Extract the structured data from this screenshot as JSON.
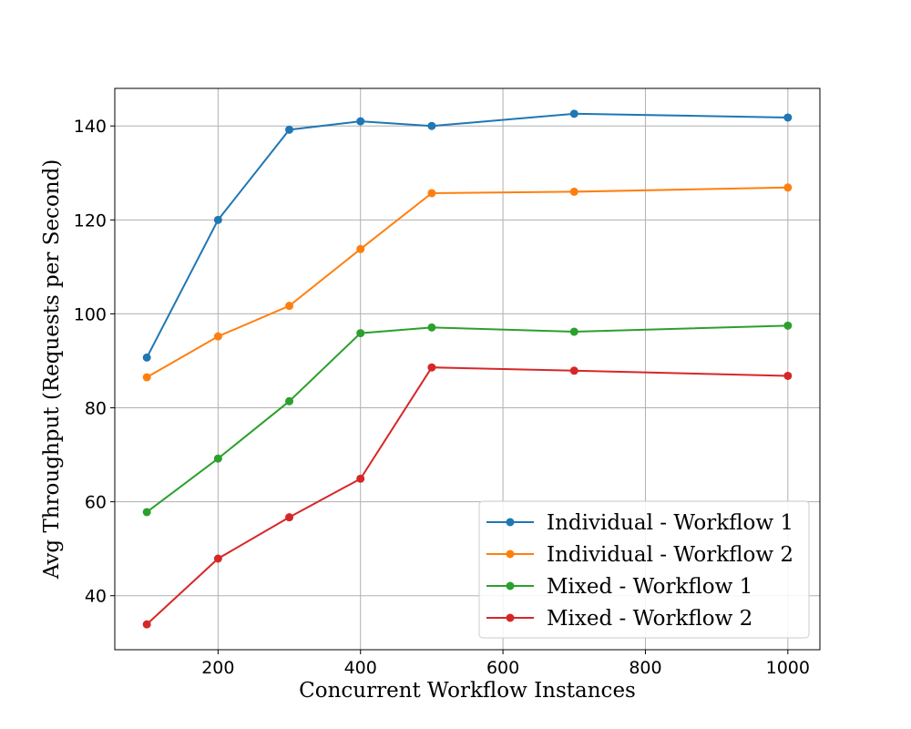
{
  "chart_data": {
    "type": "line",
    "title": "",
    "xlabel": "Concurrent Workflow Instances",
    "ylabel": "Avg Throughput (Requests per Second)",
    "x": [
      100,
      200,
      300,
      400,
      500,
      700,
      1000
    ],
    "xlim": [
      55,
      1045
    ],
    "ylim": [
      28.5,
      148
    ],
    "xticks": [
      200,
      400,
      600,
      800,
      1000
    ],
    "yticks": [
      40,
      60,
      80,
      100,
      120,
      140
    ],
    "grid": true,
    "legend_position": "lower-right",
    "series": [
      {
        "name": "Individual - Workflow 1",
        "color": "#1f77b4",
        "values": [
          90.7,
          120.0,
          139.2,
          141.0,
          140.0,
          142.6,
          141.8
        ]
      },
      {
        "name": "Individual - Workflow 2",
        "color": "#ff7f0e",
        "values": [
          86.5,
          95.2,
          101.7,
          113.8,
          125.7,
          126.0,
          126.9
        ]
      },
      {
        "name": "Mixed - Workflow 1",
        "color": "#2ca02c",
        "values": [
          57.8,
          69.2,
          81.4,
          95.9,
          97.1,
          96.2,
          97.5
        ]
      },
      {
        "name": "Mixed - Workflow 2",
        "color": "#d62728",
        "values": [
          33.9,
          47.9,
          56.7,
          64.9,
          88.6,
          87.9,
          86.8
        ]
      }
    ]
  }
}
